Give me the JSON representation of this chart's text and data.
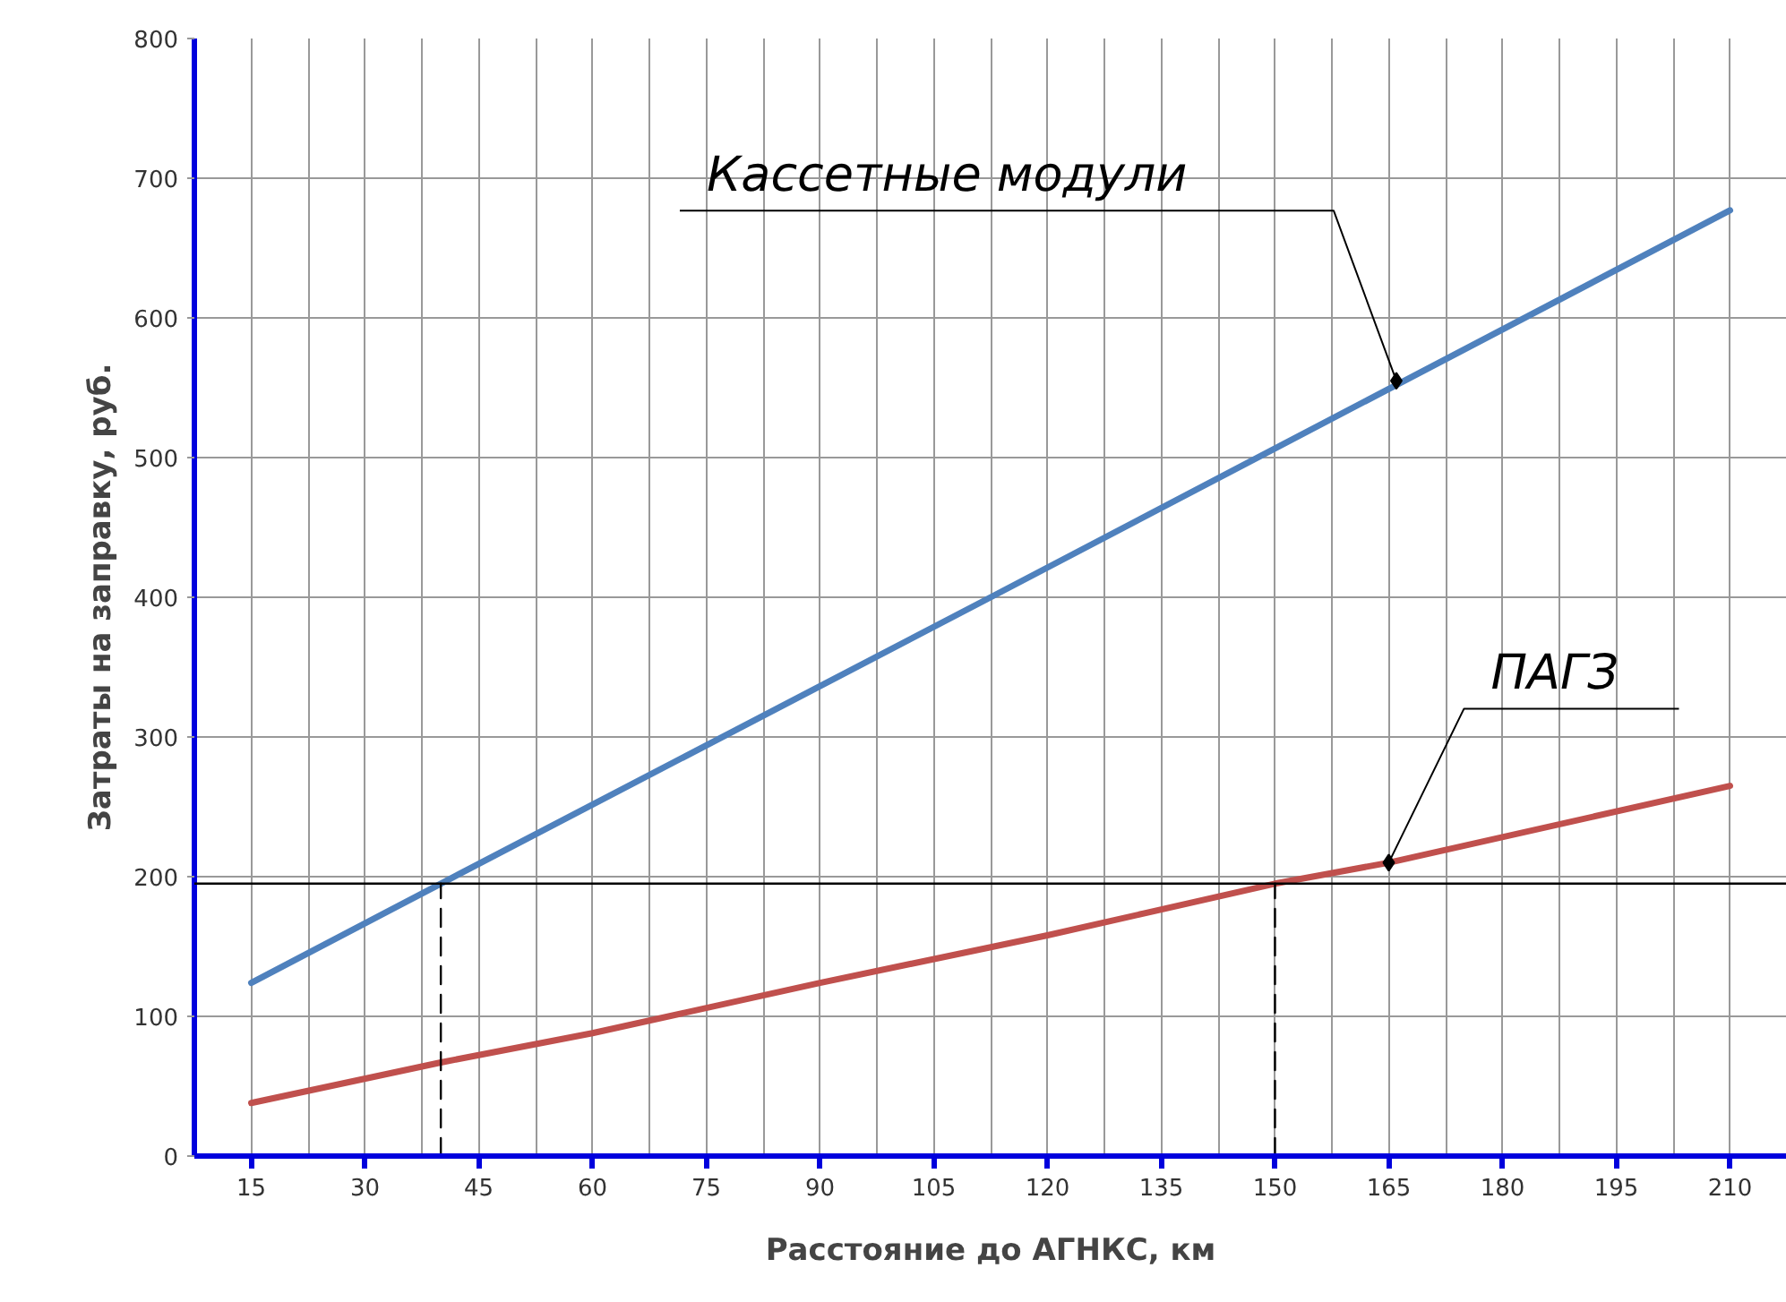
{
  "chart_data": {
    "type": "line",
    "xlabel": "Расстояние до АГНКС, км",
    "ylabel": "Затраты на заправку, руб.",
    "xlim": [
      7.5,
      217.5
    ],
    "ylim": [
      0,
      800
    ],
    "xticks": [
      15,
      {
        "value": 22.5,
        "label": null
      },
      30,
      {
        "value": 37.5,
        "label": null
      },
      45,
      {
        "value": 52.5,
        "label": null
      },
      60,
      {
        "value": 67.5,
        "label": null
      },
      75,
      {
        "value": 82.5,
        "label": null
      },
      90,
      {
        "value": 97.5,
        "label": null
      },
      105,
      {
        "value": 112.5,
        "label": null
      },
      120,
      {
        "value": 127.5,
        "label": null
      },
      135,
      {
        "value": 142.5,
        "label": null
      },
      150,
      {
        "value": 157.5,
        "label": null
      },
      165,
      {
        "value": 172.5,
        "label": null
      },
      180,
      {
        "value": 187.5,
        "label": null
      },
      195,
      {
        "value": 202.5,
        "label": null
      },
      210
    ],
    "yticks": [
      0,
      100,
      200,
      300,
      400,
      500,
      600,
      700,
      800
    ],
    "grid": true,
    "line_style": "solid",
    "series": [
      {
        "color": "#4f81bd",
        "x": [
          15,
          40,
          112.5,
          210
        ],
        "values": [
          124,
          195,
          400,
          677
        ]
      },
      {
        "color": "#c0504d",
        "x": [
          15,
          40,
          60,
          90,
          120,
          150,
          165,
          210
        ],
        "values": [
          38,
          67,
          88,
          124,
          158,
          195,
          210,
          265
        ]
      },
      {
        "color": "#000000",
        "x": [
          40,
          40
        ],
        "values": [
          0,
          195
        ],
        "line_style": "dashed"
      },
      {
        "color": "#000000",
        "x": [
          150,
          150
        ],
        "values": [
          0,
          195
        ],
        "line_style": "dashed"
      }
    ],
    "ref_lines": [
      {
        "axis": "y",
        "value": 195,
        "color": "#000000"
      }
    ],
    "annotations": [
      {
        "text": "Кассетные модули",
        "x": 166,
        "y": 555
      },
      {
        "text": "ПАГЗ",
        "x": 165,
        "y": 210
      }
    ]
  }
}
